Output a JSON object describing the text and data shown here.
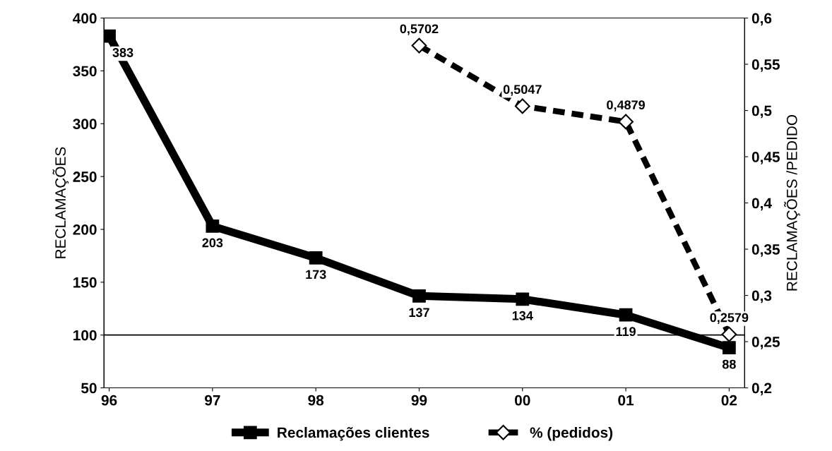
{
  "chart_data": {
    "type": "line",
    "ylabel": "RECLAMAÇÕES",
    "y2label": "RECLAMAÇÕES /PEDIDO",
    "categories": [
      "96",
      "97",
      "98",
      "99",
      "00",
      "01",
      "02"
    ],
    "series": [
      {
        "name": "Reclamações clientes",
        "color": "#000000",
        "marker": "square",
        "line_style": "solid",
        "values": [
          383,
          203,
          173,
          137,
          134,
          119,
          88
        ],
        "value_labels": [
          "383",
          "203",
          "173",
          "137",
          "134",
          "119",
          "88"
        ]
      },
      {
        "name": "% (pedidos)",
        "color": "#000000",
        "marker": "diamond",
        "line_style": "dashed",
        "axis": "y2",
        "values": [
          null,
          null,
          null,
          0.5702,
          0.5047,
          0.4879,
          0.2579
        ],
        "value_labels": [
          null,
          null,
          null,
          "0,5702",
          "0,5047",
          "0,4879",
          "0,2579"
        ]
      }
    ],
    "ylim": [
      50,
      400
    ],
    "yticks": [
      50,
      100,
      150,
      200,
      250,
      300,
      350,
      400
    ],
    "y2lim": [
      0.2,
      0.6
    ],
    "y2ticks": [
      {
        "value": 0.2,
        "label": "0,2"
      },
      {
        "value": 0.25,
        "label": "0,25"
      },
      {
        "value": 0.3,
        "label": "0,3"
      },
      {
        "value": 0.35,
        "label": "0,35"
      },
      {
        "value": 0.4,
        "label": "0,4"
      },
      {
        "value": 0.45,
        "label": "0,45"
      },
      {
        "value": 0.5,
        "label": "0,5"
      },
      {
        "value": 0.55,
        "label": "0,55"
      },
      {
        "value": 0.6,
        "label": "0,6"
      }
    ],
    "ref_lines": [
      {
        "axis": "y",
        "value": 100,
        "label": null,
        "color": "#000000"
      }
    ],
    "grid": false,
    "legend": "bottom"
  }
}
